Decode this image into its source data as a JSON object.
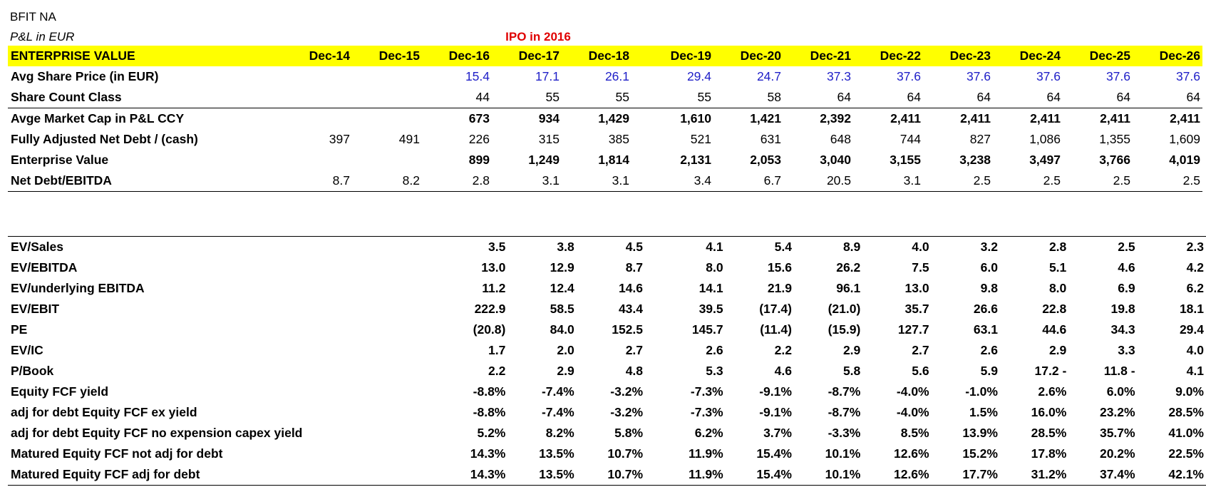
{
  "title": "BFIT NA",
  "subtitle": "P&L in EUR",
  "ipo_note": "IPO in 2016",
  "colors": {
    "highlight": "#ffff00",
    "ipo": "#e00000",
    "input_blue": "#2020c8"
  },
  "columns": [
    "Dec-14",
    "Dec-15",
    "Dec-16",
    "Dec-17",
    "Dec-18",
    "Dec-19",
    "Dec-20",
    "Dec-21",
    "Dec-22",
    "Dec-23",
    "Dec-24",
    "Dec-25",
    "Dec-26"
  ],
  "ev_section": {
    "header": "ENTERPRISE VALUE",
    "rows": [
      {
        "label": "Avg Share Price (in EUR)",
        "values": [
          "",
          "",
          "15.4",
          "17.1",
          "26.1",
          "29.4",
          "24.7",
          "37.3",
          "37.6",
          "37.6",
          "37.6",
          "37.6",
          "37.6"
        ]
      },
      {
        "label": "Share Count Class",
        "values": [
          "",
          "",
          "44",
          "55",
          "55",
          "55",
          "58",
          "64",
          "64",
          "64",
          "64",
          "64",
          "64"
        ]
      },
      {
        "label": "Avge Market Cap in P&L CCY",
        "values": [
          "",
          "",
          "673",
          "934",
          "1,429",
          "1,610",
          "1,421",
          "2,392",
          "2,411",
          "2,411",
          "2,411",
          "2,411",
          "2,411"
        ]
      },
      {
        "label": "Fully Adjusted Net Debt / (cash)",
        "values": [
          "397",
          "491",
          "226",
          "315",
          "385",
          "521",
          "631",
          "648",
          "744",
          "827",
          "1,086",
          "1,355",
          "1,609"
        ]
      },
      {
        "label": "Enterprise Value",
        "values": [
          "",
          "",
          "899",
          "1,249",
          "1,814",
          "2,131",
          "2,053",
          "3,040",
          "3,155",
          "3,238",
          "3,497",
          "3,766",
          "4,019"
        ]
      },
      {
        "label": "Net Debt/EBITDA",
        "values": [
          "8.7",
          "8.2",
          "2.8",
          "3.1",
          "3.1",
          "3.4",
          "6.7",
          "20.5",
          "3.1",
          "2.5",
          "2.5",
          "2.5",
          "2.5"
        ]
      }
    ]
  },
  "multiples_section": {
    "rows": [
      {
        "label": "EV/Sales",
        "values": [
          "",
          "",
          "3.5",
          "3.8",
          "4.5",
          "4.1",
          "5.4",
          "8.9",
          "4.0",
          "3.2",
          "2.8",
          "2.5",
          "2.3"
        ]
      },
      {
        "label": "EV/EBITDA",
        "values": [
          "",
          "",
          "13.0",
          "12.9",
          "8.7",
          "8.0",
          "15.6",
          "26.2",
          "7.5",
          "6.0",
          "5.1",
          "4.6",
          "4.2"
        ]
      },
      {
        "label": "EV/underlying EBITDA",
        "values": [
          "",
          "",
          "11.2",
          "12.4",
          "14.6",
          "14.1",
          "21.9",
          "96.1",
          "13.0",
          "9.8",
          "8.0",
          "6.9",
          "6.2"
        ]
      },
      {
        "label": "EV/EBIT",
        "values": [
          "",
          "",
          "222.9",
          "58.5",
          "43.4",
          "39.5",
          "(17.4)",
          "(21.0)",
          "35.7",
          "26.6",
          "22.8",
          "19.8",
          "18.1"
        ]
      },
      {
        "label": "PE",
        "values": [
          "",
          "",
          "(20.8)",
          "84.0",
          "152.5",
          "145.7",
          "(11.4)",
          "(15.9)",
          "127.7",
          "63.1",
          "44.6",
          "34.3",
          "29.4"
        ]
      },
      {
        "label": "EV/IC",
        "values": [
          "",
          "",
          "1.7",
          "2.0",
          "2.7",
          "2.6",
          "2.2",
          "2.9",
          "2.7",
          "2.6",
          "2.9",
          "3.3",
          "4.0"
        ]
      },
      {
        "label": "P/Book",
        "values": [
          "",
          "",
          "2.2",
          "2.9",
          "4.8",
          "5.3",
          "4.6",
          "5.8",
          "5.6",
          "5.9",
          "17.2 -",
          "11.8 -",
          "4.1"
        ]
      },
      {
        "label": "Equity FCF yield",
        "values": [
          "",
          "",
          "-8.8%",
          "-7.4%",
          "-3.2%",
          "-7.3%",
          "-9.1%",
          "-8.7%",
          "-4.0%",
          "-1.0%",
          "2.6%",
          "6.0%",
          "9.0%"
        ]
      },
      {
        "label": "adj for debt Equity FCF ex yield",
        "values": [
          "",
          "",
          "-8.8%",
          "-7.4%",
          "-3.2%",
          "-7.3%",
          "-9.1%",
          "-8.7%",
          "-4.0%",
          "1.5%",
          "16.0%",
          "23.2%",
          "28.5%"
        ]
      },
      {
        "label": "adj for debt Equity FCF no expension capex yield",
        "values": [
          "",
          "",
          "5.2%",
          "8.2%",
          "5.8%",
          "6.2%",
          "3.7%",
          "-3.3%",
          "8.5%",
          "13.9%",
          "28.5%",
          "35.7%",
          "41.0%"
        ]
      },
      {
        "label": "Matured Equity FCF not adj for debt",
        "values": [
          "",
          "",
          "14.3%",
          "13.5%",
          "10.7%",
          "11.9%",
          "15.4%",
          "10.1%",
          "12.6%",
          "15.2%",
          "17.8%",
          "20.2%",
          "22.5%"
        ]
      },
      {
        "label": "Matured Equity FCF adj for debt",
        "values": [
          "",
          "",
          "14.3%",
          "13.5%",
          "10.7%",
          "11.9%",
          "15.4%",
          "10.1%",
          "12.6%",
          "17.7%",
          "31.2%",
          "37.4%",
          "42.1%"
        ]
      }
    ]
  }
}
